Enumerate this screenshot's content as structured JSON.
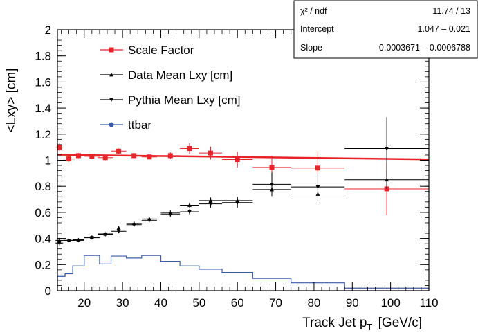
{
  "chart_data": {
    "type": "scatter",
    "title": "",
    "xlabel_main": "Track Jet p",
    "xlabel_sub": "T",
    "xlabel_unit": "[GeV/c]",
    "ylabel": "<Lxy> [cm]",
    "xlim": [
      13,
      110
    ],
    "ylim": [
      0,
      2
    ],
    "x_ticks": [
      20,
      30,
      40,
      50,
      60,
      70,
      80,
      90,
      100,
      110
    ],
    "y_ticks": [
      0,
      0.2,
      0.4,
      0.6,
      0.8,
      1,
      1.2,
      1.4,
      1.6,
      1.8,
      2
    ],
    "y_tick_labels": [
      "0",
      "0.2",
      "0.4",
      "0.6",
      "0.8",
      "1",
      "1.2",
      "1.4",
      "1.6",
      "1.8",
      "2"
    ],
    "legend": [
      {
        "label": "Scale Factor",
        "color": "#e8232a",
        "marker": "square"
      },
      {
        "label": "Data Mean Lxy [cm]",
        "color": "#000000",
        "marker": "triangle-up"
      },
      {
        "label": "Pythia Mean Lxy [cm]",
        "color": "#000000",
        "marker": "triangle-down"
      },
      {
        "label": "ttbar",
        "color": "#3a5ba8",
        "marker": "circle"
      }
    ],
    "series": [
      {
        "name": "Scale Factor",
        "color": "#e8232a",
        "points": [
          {
            "x": 13.5,
            "y": 1.1,
            "xerr": 1.0,
            "yerr": 0.03
          },
          {
            "x": 16,
            "y": 1.01,
            "xerr": 1.5,
            "yerr": 0.02
          },
          {
            "x": 18.5,
            "y": 1.035,
            "xerr": 1.5,
            "yerr": 0.02
          },
          {
            "x": 22,
            "y": 1.03,
            "xerr": 2,
            "yerr": 0.02
          },
          {
            "x": 25.5,
            "y": 1.02,
            "xerr": 2,
            "yerr": 0.02
          },
          {
            "x": 29,
            "y": 1.07,
            "xerr": 2,
            "yerr": 0.02
          },
          {
            "x": 33,
            "y": 1.035,
            "xerr": 2,
            "yerr": 0.02
          },
          {
            "x": 37,
            "y": 1.025,
            "xerr": 2,
            "yerr": 0.02
          },
          {
            "x": 42.5,
            "y": 1.035,
            "xerr": 2.5,
            "yerr": 0.025
          },
          {
            "x": 47.5,
            "y": 1.09,
            "xerr": 2.5,
            "yerr": 0.04
          },
          {
            "x": 53,
            "y": 1.055,
            "xerr": 3,
            "yerr": 0.05
          },
          {
            "x": 60,
            "y": 1.005,
            "xerr": 4,
            "yerr": 0.06
          },
          {
            "x": 69,
            "y": 0.945,
            "xerr": 5,
            "yerr": 0.09
          },
          {
            "x": 81,
            "y": 0.94,
            "xerr": 7,
            "yerr": 0.13
          },
          {
            "x": 99,
            "y": 0.78,
            "xerr": 11,
            "yerr": 0.2
          }
        ]
      },
      {
        "name": "Data Mean Lxy [cm]",
        "color": "#000000",
        "points": [
          {
            "x": 13.5,
            "y": 0.385,
            "xerr": 1.0,
            "yerr": 0.02
          },
          {
            "x": 16,
            "y": 0.385,
            "xerr": 1.5,
            "yerr": 0.01
          },
          {
            "x": 18.5,
            "y": 0.39,
            "xerr": 1.5,
            "yerr": 0.01
          },
          {
            "x": 22,
            "y": 0.41,
            "xerr": 2,
            "yerr": 0.01
          },
          {
            "x": 25.5,
            "y": 0.435,
            "xerr": 2,
            "yerr": 0.01
          },
          {
            "x": 29,
            "y": 0.48,
            "xerr": 2,
            "yerr": 0.015
          },
          {
            "x": 33,
            "y": 0.515,
            "xerr": 2,
            "yerr": 0.015
          },
          {
            "x": 37,
            "y": 0.55,
            "xerr": 2,
            "yerr": 0.015
          },
          {
            "x": 42.5,
            "y": 0.595,
            "xerr": 2.5,
            "yerr": 0.02
          },
          {
            "x": 47.5,
            "y": 0.655,
            "xerr": 2.5,
            "yerr": 0.02
          },
          {
            "x": 53,
            "y": 0.69,
            "xerr": 3,
            "yerr": 0.025
          },
          {
            "x": 60,
            "y": 0.69,
            "xerr": 4,
            "yerr": 0.03
          },
          {
            "x": 69,
            "y": 0.775,
            "xerr": 5,
            "yerr": 0.04
          },
          {
            "x": 81,
            "y": 0.74,
            "xerr": 7,
            "yerr": 0.05
          },
          {
            "x": 99,
            "y": 0.85,
            "xerr": 11,
            "yerr": 0.07
          }
        ]
      },
      {
        "name": "Pythia Mean Lxy [cm]",
        "color": "#000000",
        "points": [
          {
            "x": 13.5,
            "y": 0.365,
            "xerr": 1.0,
            "yerr": 0.02
          },
          {
            "x": 16,
            "y": 0.385,
            "xerr": 1.5,
            "yerr": 0.01
          },
          {
            "x": 18.5,
            "y": 0.385,
            "xerr": 1.5,
            "yerr": 0.01
          },
          {
            "x": 22,
            "y": 0.405,
            "xerr": 2,
            "yerr": 0.01
          },
          {
            "x": 25.5,
            "y": 0.43,
            "xerr": 2,
            "yerr": 0.01
          },
          {
            "x": 29,
            "y": 0.455,
            "xerr": 2,
            "yerr": 0.015
          },
          {
            "x": 33,
            "y": 0.505,
            "xerr": 2,
            "yerr": 0.015
          },
          {
            "x": 37,
            "y": 0.54,
            "xerr": 2,
            "yerr": 0.015
          },
          {
            "x": 42.5,
            "y": 0.585,
            "xerr": 2.5,
            "yerr": 0.02
          },
          {
            "x": 47.5,
            "y": 0.605,
            "xerr": 2.5,
            "yerr": 0.02
          },
          {
            "x": 53,
            "y": 0.665,
            "xerr": 3,
            "yerr": 0.03
          },
          {
            "x": 60,
            "y": 0.675,
            "xerr": 4,
            "yerr": 0.04
          },
          {
            "x": 69,
            "y": 0.815,
            "xerr": 5,
            "yerr": 0.09
          },
          {
            "x": 81,
            "y": 0.795,
            "xerr": 7,
            "yerr": 0.11
          },
          {
            "x": 99,
            "y": 1.09,
            "xerr": 11,
            "yerr": 0.24
          }
        ]
      },
      {
        "name": "ttbar",
        "color": "#3a5ba8",
        "style": "histogram",
        "bins": [
          {
            "x0": 13,
            "x1": 15,
            "y": 0.11
          },
          {
            "x0": 15,
            "x1": 17,
            "y": 0.13
          },
          {
            "x0": 17,
            "x1": 20,
            "y": 0.19
          },
          {
            "x0": 20,
            "x1": 24,
            "y": 0.27
          },
          {
            "x0": 24,
            "x1": 27,
            "y": 0.205
          },
          {
            "x0": 27,
            "x1": 31,
            "y": 0.265
          },
          {
            "x0": 31,
            "x1": 35,
            "y": 0.25
          },
          {
            "x0": 35,
            "x1": 40,
            "y": 0.27
          },
          {
            "x0": 40,
            "x1": 45,
            "y": 0.225
          },
          {
            "x0": 45,
            "x1": 50,
            "y": 0.19
          },
          {
            "x0": 50,
            "x1": 56,
            "y": 0.165
          },
          {
            "x0": 56,
            "x1": 64,
            "y": 0.14
          },
          {
            "x0": 64,
            "x1": 74,
            "y": 0.095
          },
          {
            "x0": 74,
            "x1": 88,
            "y": 0.06
          },
          {
            "x0": 88,
            "x1": 110,
            "y": 0.02
          }
        ]
      }
    ],
    "fit": {
      "color": "#e8232a",
      "intercept": 1.047,
      "slope": -0.0003671,
      "x0": 13,
      "x1": 110
    },
    "stats_box": [
      {
        "label": "χ² / ndf",
        "value": "11.74 / 13"
      },
      {
        "label": "Intercept",
        "value": "1.047 – 0.021"
      },
      {
        "label": "Slope",
        "value": "-0.0003671 – 0.0006788"
      }
    ]
  }
}
